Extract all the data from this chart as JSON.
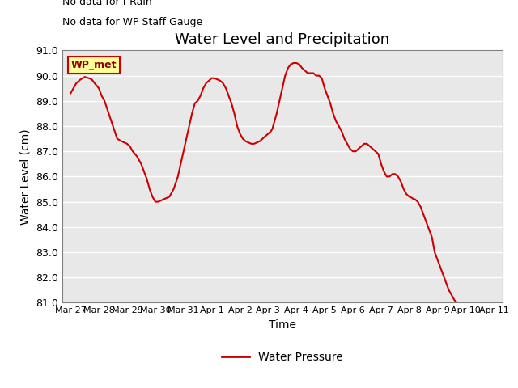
{
  "title": "Water Level and Precipitation",
  "xlabel": "Time",
  "ylabel": "Water Level (cm)",
  "ylim": [
    81.0,
    91.0
  ],
  "yticks": [
    81.0,
    82.0,
    83.0,
    84.0,
    85.0,
    86.0,
    87.0,
    88.0,
    89.0,
    90.0,
    91.0
  ],
  "xtick_labels": [
    "Mar 27",
    "Mar 28",
    "Mar 29",
    "Mar 30",
    "Mar 31",
    "Apr 1",
    "Apr 2",
    "Apr 3",
    "Apr 4",
    "Apr 5",
    "Apr 6",
    "Apr 7",
    "Apr 8",
    "Apr 9",
    "Apr 10",
    "Apr 11"
  ],
  "no_data_text1": "No data for f Rain",
  "no_data_text2": "No data for WP Staff Gauge",
  "legend_label_wp_met": "WP_met",
  "legend_label_pressure": "Water Pressure",
  "line_color": "#cc0000",
  "bg_color": "#e8e8e8",
  "wp_met_box_facecolor": "#ffff99",
  "wp_met_box_edgecolor": "#cc0000",
  "x": [
    0.0,
    0.1,
    0.2,
    0.35,
    0.5,
    0.65,
    0.75,
    0.85,
    1.0,
    1.1,
    1.2,
    1.35,
    1.5,
    1.65,
    1.8,
    1.9,
    2.0,
    2.1,
    2.2,
    2.35,
    2.5,
    2.6,
    2.7,
    2.8,
    2.9,
    3.0,
    3.05,
    3.1,
    3.2,
    3.3,
    3.5,
    3.65,
    3.8,
    3.9,
    4.0,
    4.1,
    4.2,
    4.3,
    4.35,
    4.4,
    4.5,
    4.6,
    4.7,
    4.75,
    4.8,
    4.85,
    4.9,
    4.95,
    5.0,
    5.1,
    5.2,
    5.3,
    5.4,
    5.5,
    5.6,
    5.7,
    5.8,
    5.9,
    6.0,
    6.1,
    6.2,
    6.3,
    6.4,
    6.5,
    6.6,
    6.7,
    6.8,
    6.9,
    7.0,
    7.1,
    7.15,
    7.2,
    7.3,
    7.4,
    7.5,
    7.6,
    7.7,
    7.8,
    7.9,
    8.0,
    8.1,
    8.2,
    8.3,
    8.35,
    8.4,
    8.45,
    8.5,
    8.55,
    8.6,
    8.65,
    8.7,
    8.75,
    8.8,
    8.9,
    9.0,
    9.1,
    9.2,
    9.3,
    9.4,
    9.5,
    9.6,
    9.7,
    9.8,
    9.9,
    10.0,
    10.1,
    10.2,
    10.3,
    10.4,
    10.5,
    10.6,
    10.7,
    10.8,
    10.9,
    11.0,
    11.1,
    11.2,
    11.3,
    11.4,
    11.5,
    11.6,
    11.7,
    11.8,
    11.9,
    12.0,
    12.1,
    12.15,
    12.2,
    12.3,
    12.4,
    12.5,
    12.6,
    12.7,
    12.8,
    12.85,
    12.9,
    13.0,
    13.1,
    13.2,
    13.3,
    13.4,
    13.5,
    13.6,
    13.7,
    13.8,
    13.9,
    14.0,
    14.05,
    14.1,
    14.15,
    14.2,
    14.3,
    14.35,
    14.4,
    14.45,
    14.5,
    14.55,
    14.6,
    14.65,
    14.7,
    14.75,
    14.8,
    14.85,
    14.9,
    15.0
  ],
  "y": [
    89.3,
    89.5,
    89.7,
    89.85,
    89.95,
    89.9,
    89.85,
    89.7,
    89.5,
    89.2,
    89.0,
    88.5,
    88.0,
    87.5,
    87.4,
    87.35,
    87.3,
    87.2,
    87.0,
    86.8,
    86.5,
    86.2,
    85.9,
    85.5,
    85.2,
    85.0,
    85.0,
    85.0,
    85.05,
    85.1,
    85.2,
    85.5,
    86.0,
    86.5,
    87.0,
    87.5,
    88.0,
    88.5,
    88.7,
    88.9,
    89.0,
    89.2,
    89.5,
    89.6,
    89.7,
    89.75,
    89.8,
    89.85,
    89.9,
    89.9,
    89.85,
    89.8,
    89.7,
    89.5,
    89.2,
    88.9,
    88.5,
    88.0,
    87.7,
    87.5,
    87.4,
    87.35,
    87.3,
    87.3,
    87.35,
    87.4,
    87.5,
    87.6,
    87.7,
    87.8,
    87.9,
    88.1,
    88.5,
    89.0,
    89.5,
    90.0,
    90.3,
    90.45,
    90.5,
    90.5,
    90.45,
    90.3,
    90.2,
    90.15,
    90.1,
    90.1,
    90.1,
    90.1,
    90.1,
    90.05,
    90.0,
    90.0,
    90.0,
    89.9,
    89.5,
    89.2,
    88.9,
    88.5,
    88.2,
    88.0,
    87.8,
    87.5,
    87.3,
    87.1,
    87.0,
    87.0,
    87.1,
    87.2,
    87.3,
    87.3,
    87.2,
    87.1,
    87.0,
    86.9,
    86.5,
    86.2,
    86.0,
    86.0,
    86.1,
    86.1,
    86.0,
    85.8,
    85.5,
    85.3,
    85.2,
    85.15,
    85.1,
    85.1,
    85.0,
    84.8,
    84.5,
    84.2,
    83.9,
    83.6,
    83.3,
    83.0,
    82.7,
    82.4,
    82.1,
    81.8,
    81.5,
    81.3,
    81.1,
    81.0,
    81.0,
    81.0,
    81.0,
    81.0,
    81.0,
    81.0,
    81.0,
    81.0,
    81.0,
    81.0,
    81.0,
    81.0,
    81.0,
    81.0,
    81.0,
    81.0,
    81.0,
    81.0,
    81.0,
    81.0,
    81.0
  ]
}
